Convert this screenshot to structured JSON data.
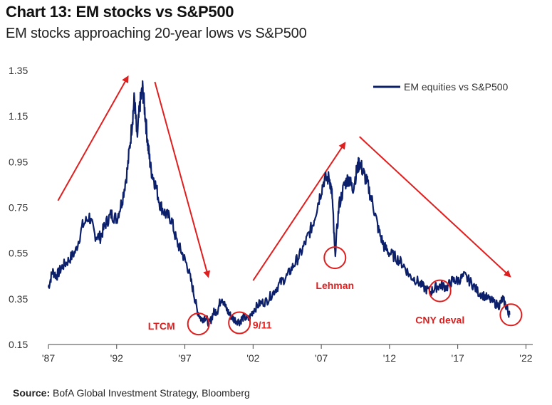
{
  "header": {
    "title": "Chart 13: EM stocks vs S&P500",
    "subtitle": "EM stocks approaching 20-year lows vs S&P500"
  },
  "footer": {
    "source_label": "Source:",
    "source_text": "BofA Global Investment Strategy, Bloomberg"
  },
  "colors": {
    "line": "#0b1f6b",
    "annotation": "#e01e1e"
  },
  "chart_data": {
    "type": "line",
    "title": "Chart 13: EM stocks vs S&P500",
    "subtitle": "EM stocks approaching 20-year lows vs S&P500",
    "xlabel": "",
    "ylabel": "",
    "xlim": [
      1987,
      2022.5
    ],
    "ylim": [
      0.15,
      1.35
    ],
    "y_ticks": [
      1.35,
      1.15,
      0.95,
      0.75,
      0.55,
      0.35,
      0.15
    ],
    "y_tick_labels": [
      "1.35",
      "1.15",
      "0.95",
      "0.75",
      "0.55",
      "0.35",
      "0.15"
    ],
    "x_ticks": [
      1987,
      1992,
      1997,
      2002,
      2007,
      2012,
      2017,
      2022
    ],
    "x_tick_labels": [
      "'87",
      "'92",
      "'97",
      "'02",
      "'07",
      "'12",
      "'17",
      "'22"
    ],
    "grid": false,
    "legend_position": "top-right",
    "series": [
      {
        "name": "EM equities vs S&P500",
        "x": [
          1987.0,
          1987.3,
          1987.6,
          1988.0,
          1988.5,
          1989.0,
          1989.5,
          1990.0,
          1990.4,
          1990.8,
          1991.2,
          1991.6,
          1992.0,
          1992.4,
          1992.8,
          1993.1,
          1993.3,
          1993.5,
          1993.7,
          1993.9,
          1994.1,
          1994.3,
          1994.5,
          1994.8,
          1995.2,
          1995.6,
          1996.0,
          1996.4,
          1996.8,
          1997.2,
          1997.6,
          1997.9,
          1998.2,
          1998.5,
          1998.8,
          1999.1,
          1999.4,
          1999.7,
          2000.0,
          2000.3,
          2000.6,
          2001.0,
          2001.3,
          2001.7,
          2002.0,
          2002.5,
          2003.0,
          2003.5,
          2004.0,
          2004.5,
          2005.0,
          2005.5,
          2006.0,
          2006.4,
          2006.8,
          2007.2,
          2007.6,
          2007.8,
          2008.0,
          2008.3,
          2008.7,
          2009.0,
          2009.3,
          2009.6,
          2009.8,
          2010.1,
          2010.4,
          2010.8,
          2011.2,
          2011.6,
          2012.0,
          2012.5,
          2013.0,
          2013.5,
          2014.0,
          2014.5,
          2015.0,
          2015.4,
          2015.8,
          2016.2,
          2016.6,
          2017.0,
          2017.5,
          2018.0,
          2018.5,
          2019.0,
          2019.5,
          2020.0,
          2020.3,
          2020.6,
          2020.8
        ],
        "values": [
          0.4,
          0.47,
          0.45,
          0.49,
          0.52,
          0.56,
          0.67,
          0.71,
          0.63,
          0.62,
          0.68,
          0.72,
          0.7,
          0.78,
          0.92,
          1.1,
          1.23,
          1.05,
          1.2,
          1.27,
          1.15,
          1.02,
          0.92,
          0.86,
          0.76,
          0.72,
          0.7,
          0.6,
          0.55,
          0.49,
          0.39,
          0.3,
          0.26,
          0.27,
          0.24,
          0.29,
          0.3,
          0.36,
          0.31,
          0.28,
          0.26,
          0.25,
          0.27,
          0.26,
          0.3,
          0.33,
          0.34,
          0.38,
          0.42,
          0.45,
          0.5,
          0.55,
          0.62,
          0.68,
          0.78,
          0.87,
          0.88,
          0.8,
          0.54,
          0.76,
          0.85,
          0.88,
          0.83,
          0.91,
          0.95,
          0.9,
          0.85,
          0.76,
          0.65,
          0.58,
          0.55,
          0.53,
          0.5,
          0.45,
          0.43,
          0.4,
          0.38,
          0.4,
          0.41,
          0.4,
          0.43,
          0.43,
          0.45,
          0.42,
          0.38,
          0.36,
          0.34,
          0.32,
          0.35,
          0.31,
          0.28
        ]
      }
    ],
    "annotations": [
      {
        "label": "LTCM",
        "x": 1998.0,
        "y": 0.24
      },
      {
        "label": "9/11",
        "x": 2001.0,
        "y": 0.245
      },
      {
        "label": "Lehman",
        "x": 2008.0,
        "y": 0.53
      },
      {
        "label": "CNY deval",
        "x": 2015.7,
        "y": 0.385
      },
      {
        "label": "",
        "x": 2020.9,
        "y": 0.28
      }
    ],
    "trend_arrows": [
      {
        "from": [
          1987.7,
          0.78
        ],
        "to": [
          1992.8,
          1.32
        ]
      },
      {
        "from": [
          1994.8,
          1.3
        ],
        "to": [
          1998.7,
          0.45
        ]
      },
      {
        "from": [
          2002.0,
          0.43
        ],
        "to": [
          2008.7,
          1.03
        ]
      },
      {
        "from": [
          2009.8,
          1.06
        ],
        "to": [
          2020.8,
          0.45
        ]
      }
    ]
  }
}
